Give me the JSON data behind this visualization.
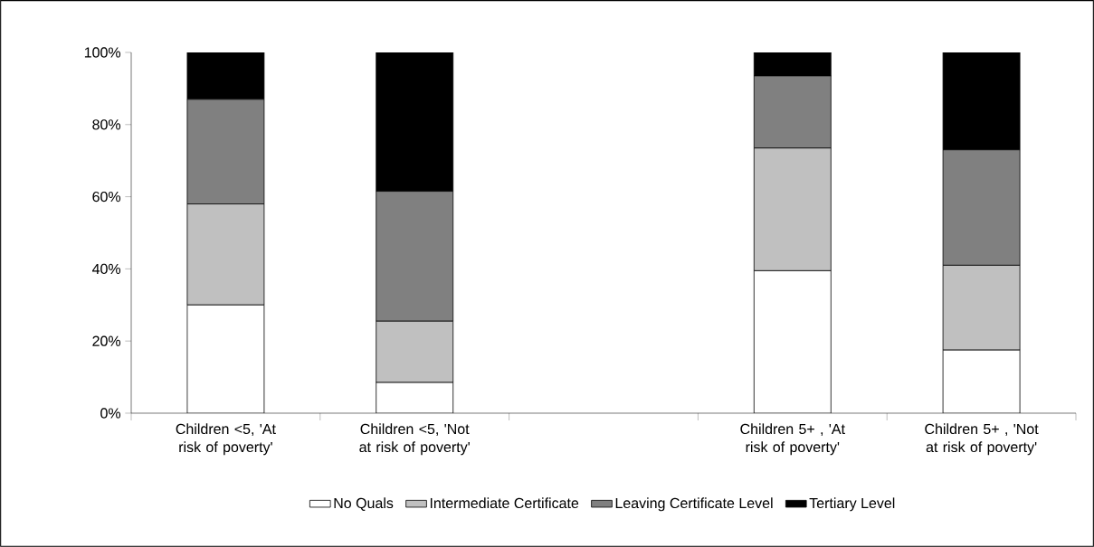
{
  "chart_data": {
    "type": "bar",
    "stacked": true,
    "categories": [
      "Children <5,  'At risk of poverty'",
      "Children <5,  'Not at risk of poverty'",
      null,
      "Children 5+ ,  'At risk of poverty'",
      "Children 5+ , 'Not at risk of poverty'"
    ],
    "series": [
      {
        "name": "No Quals",
        "color": "#ffffff",
        "values": [
          30,
          8.5,
          null,
          39.5,
          17.5
        ]
      },
      {
        "name": "Intermediate Certificate",
        "color": "#c0c0c0",
        "values": [
          28,
          17,
          null,
          34,
          23.5
        ]
      },
      {
        "name": "Leaving Certificate Level",
        "color": "#808080",
        "values": [
          29,
          36,
          null,
          20,
          32
        ]
      },
      {
        "name": "Tertiary Level",
        "color": "#000000",
        "values": [
          13,
          38.5,
          null,
          6.5,
          27
        ]
      }
    ],
    "ylim": [
      0,
      100
    ],
    "yticks": [
      {
        "value": 0,
        "label": "0%"
      },
      {
        "value": 20,
        "label": "20%"
      },
      {
        "value": 40,
        "label": "40%"
      },
      {
        "value": 60,
        "label": "60%"
      },
      {
        "value": 80,
        "label": "80%"
      },
      {
        "value": 100,
        "label": "100%"
      }
    ],
    "grid": false,
    "legend": "bottom"
  }
}
